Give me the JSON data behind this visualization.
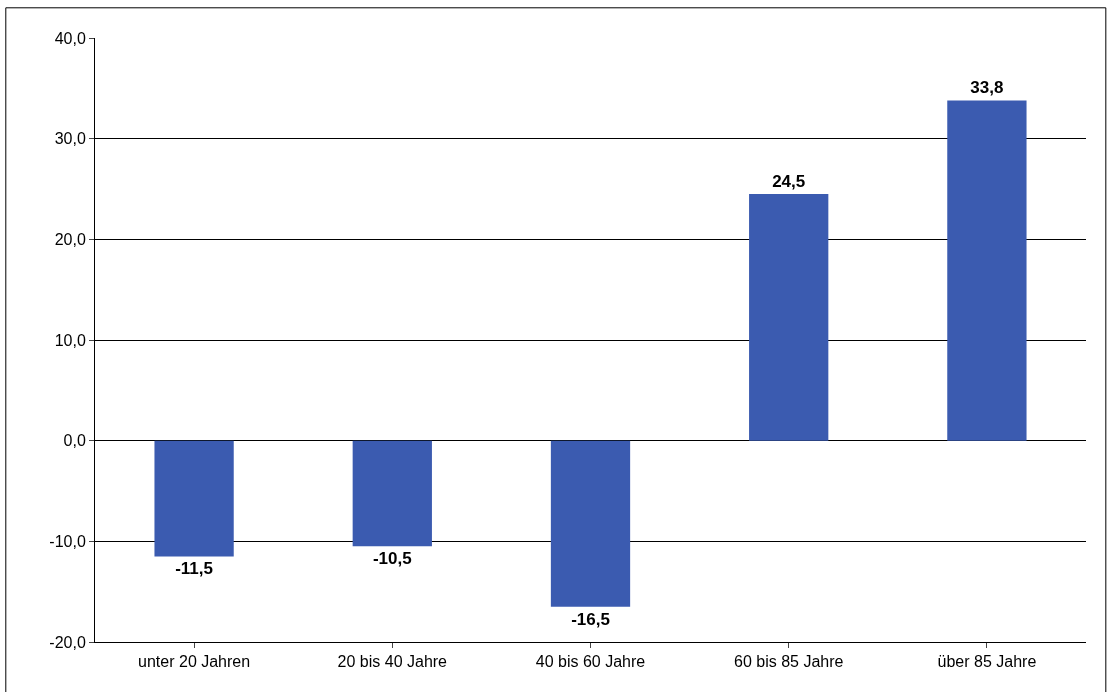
{
  "chart_data": {
    "type": "bar",
    "categories": [
      "unter 20 Jahren",
      "20 bis 40 Jahre",
      "40 bis 60 Jahre",
      "60 bis 85 Jahre",
      "über 85 Jahre"
    ],
    "values": [
      -11.5,
      -10.5,
      -16.5,
      24.5,
      33.8
    ],
    "value_labels": [
      "-11,5",
      "-10,5",
      "-16,5",
      "24,5",
      "33,8"
    ],
    "color": "#3b5bb0",
    "ylim": [
      -20,
      40
    ],
    "yticks": [
      {
        "value": -20,
        "label": "-20,0"
      },
      {
        "value": -10,
        "label": "-10,0"
      },
      {
        "value": 0,
        "label": "0,0"
      },
      {
        "value": 10,
        "label": "10,0"
      },
      {
        "value": 20,
        "label": "20,0"
      },
      {
        "value": 30,
        "label": "30,0"
      },
      {
        "value": 40,
        "label": "40,0"
      }
    ],
    "grid": "y",
    "legend": false
  }
}
